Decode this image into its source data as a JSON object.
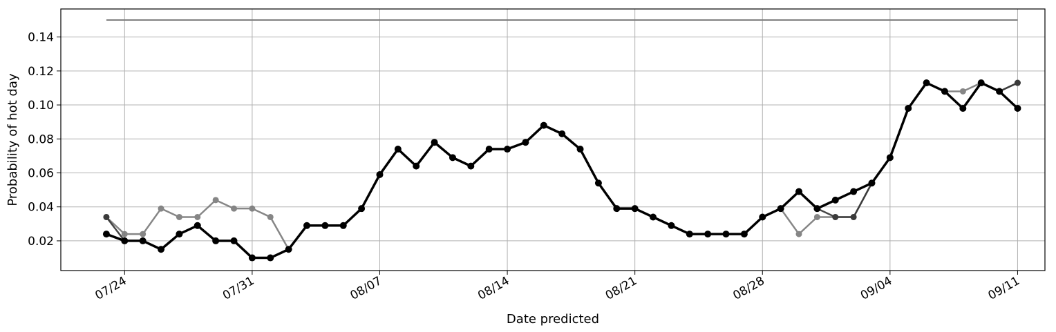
{
  "chart_data": {
    "type": "line",
    "title": "",
    "xlabel": "Date predicted",
    "ylabel": "Probability of hot day",
    "x_start": "07/23",
    "x": [
      "07/23",
      "07/24",
      "07/25",
      "07/26",
      "07/27",
      "07/28",
      "07/29",
      "07/30",
      "07/31",
      "08/01",
      "08/02",
      "08/03",
      "08/04",
      "08/05",
      "08/06",
      "08/07",
      "08/08",
      "08/09",
      "08/10",
      "08/11",
      "08/12",
      "08/13",
      "08/14",
      "08/15",
      "08/16",
      "08/17",
      "08/18",
      "08/19",
      "08/20",
      "08/21",
      "08/22",
      "08/23",
      "08/24",
      "08/25",
      "08/26",
      "08/27",
      "08/28",
      "08/29",
      "08/30",
      "08/31",
      "09/01",
      "09/02",
      "09/03",
      "09/04",
      "09/05",
      "09/06",
      "09/07",
      "09/08",
      "09/09",
      "09/10",
      "09/11"
    ],
    "x_tick_labels": [
      "07/24",
      "07/31",
      "08/07",
      "08/14",
      "08/21",
      "08/28",
      "09/04",
      "09/11"
    ],
    "y_ticks": [
      0.02,
      0.04,
      0.06,
      0.08,
      0.1,
      0.12,
      0.14
    ],
    "y_tick_labels": [
      "0.02",
      "0.04",
      "0.06",
      "0.08",
      "0.10",
      "0.12",
      "0.14"
    ],
    "xlim": [
      "07/20.5",
      "09/13.5"
    ],
    "ylim": [
      0.0025,
      0.1565
    ],
    "grid": true,
    "reference_line": {
      "y": 0.15,
      "x_from": "07/23",
      "x_to": "09/11",
      "color": "#808080"
    },
    "series": [
      {
        "color": "#7a7a7a",
        "values": [
          0.034,
          0.024,
          0.024,
          0.039,
          0.034,
          0.034,
          0.044,
          0.039,
          0.039,
          0.034,
          0.015,
          0.029,
          0.029,
          0.029,
          0.039,
          0.059,
          0.074,
          0.064,
          0.078,
          0.069,
          0.064,
          0.074,
          0.074,
          0.078,
          0.088,
          0.083,
          0.074,
          0.054,
          0.039,
          0.039,
          0.034,
          0.029,
          0.024,
          0.024,
          0.024,
          0.024,
          0.034,
          0.039,
          0.024,
          0.034,
          0.034,
          0.034,
          0.054,
          0.069,
          0.098,
          0.113,
          0.108,
          0.108,
          0.113,
          0.108,
          0.113
        ]
      },
      {
        "color": "#333333",
        "values": [
          0.034,
          0.02,
          0.02,
          0.015,
          0.024,
          0.029,
          0.02,
          0.02,
          0.01,
          0.01,
          0.015,
          0.029,
          0.029,
          0.029,
          0.039,
          0.059,
          0.074,
          0.064,
          0.078,
          0.069,
          0.064,
          0.074,
          0.074,
          0.078,
          0.088,
          0.083,
          0.074,
          0.054,
          0.039,
          0.039,
          0.034,
          0.029,
          0.024,
          0.024,
          0.024,
          0.024,
          0.034,
          0.039,
          0.049,
          0.039,
          0.034,
          0.034,
          0.054,
          0.069,
          0.098,
          0.113,
          0.108,
          0.098,
          0.113,
          0.108,
          0.113
        ]
      },
      {
        "color": "#000000",
        "values": [
          0.024,
          0.02,
          0.02,
          0.015,
          0.024,
          0.029,
          0.02,
          0.02,
          0.01,
          0.01,
          0.015,
          0.029,
          0.029,
          0.029,
          0.039,
          0.059,
          0.074,
          0.064,
          0.078,
          0.069,
          0.064,
          0.074,
          0.074,
          0.078,
          0.088,
          0.083,
          0.074,
          0.054,
          0.039,
          0.039,
          0.034,
          0.029,
          0.024,
          0.024,
          0.024,
          0.024,
          0.034,
          0.039,
          0.049,
          0.039,
          0.044,
          0.049,
          0.054,
          0.069,
          0.098,
          0.113,
          0.108,
          0.098,
          0.113,
          0.108,
          0.098
        ]
      }
    ]
  }
}
